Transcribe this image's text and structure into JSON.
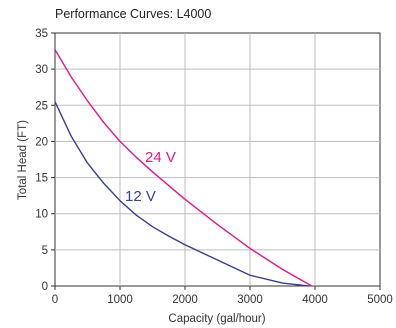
{
  "chart_data": {
    "type": "line",
    "title": "Performance Curves: L4000",
    "xlabel": "Capacity (gal/hour)",
    "ylabel": "Total Head (FT)",
    "xlim": [
      0,
      5000
    ],
    "ylim": [
      0,
      35
    ],
    "xticks": [
      "0",
      "1000",
      "2000",
      "3000",
      "4000",
      "5000"
    ],
    "yticks": [
      "0",
      "5",
      "10",
      "15",
      "20",
      "25",
      "30",
      "35"
    ],
    "grid": true,
    "series": [
      {
        "name": "24 V",
        "color": "#e2188c",
        "x": [
          0,
          250,
          500,
          750,
          1000,
          1250,
          1500,
          2000,
          2500,
          3000,
          3500,
          3950
        ],
        "y": [
          32.7,
          28.9,
          25.6,
          22.6,
          20.0,
          17.8,
          15.8,
          12.0,
          8.5,
          5.2,
          2.3,
          0
        ]
      },
      {
        "name": "12 V",
        "color": "#3b3e94",
        "x": [
          0,
          250,
          500,
          750,
          1000,
          1250,
          1500,
          1750,
          2000,
          2500,
          3000,
          3500,
          3900
        ],
        "y": [
          25.5,
          20.7,
          17.0,
          14.2,
          11.8,
          9.8,
          8.2,
          6.9,
          5.7,
          3.6,
          1.5,
          0.4,
          0
        ]
      }
    ]
  }
}
